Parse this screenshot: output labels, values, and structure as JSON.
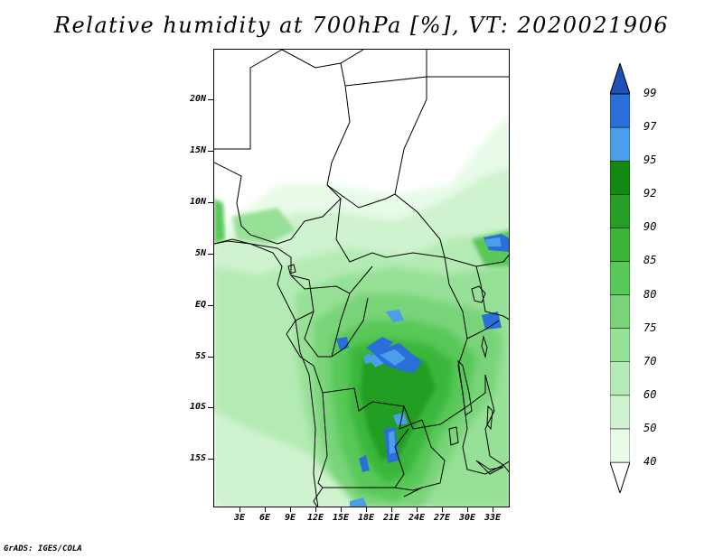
{
  "title": "Relative humidity at 700hPa [%], VT: 2020021906",
  "footer": "GrADS: IGES/COLA",
  "lat_labels": [
    "20N",
    "15N",
    "10N",
    "5N",
    "EQ",
    "5S",
    "10S",
    "15S"
  ],
  "lon_labels": [
    "3E",
    "6E",
    "9E",
    "12E",
    "15E",
    "18E",
    "21E",
    "24E",
    "27E",
    "30E",
    "33E"
  ],
  "colorbar": {
    "labels": [
      "40",
      "50",
      "60",
      "70",
      "75",
      "80",
      "85",
      "90",
      "92",
      "95",
      "97",
      "99"
    ],
    "colors": [
      "#ffffff",
      "#e8fae8",
      "#cff2cf",
      "#b4ebb4",
      "#97e097",
      "#79d479",
      "#58c858",
      "#3bb63b",
      "#249e24",
      "#128a12",
      "#4a9eea",
      "#2a6fd8",
      "#1f4fb8"
    ]
  },
  "map": {
    "domain": "Central Africa",
    "field": "Relative humidity",
    "units": "%",
    "level": "700hPa",
    "valid_time": "2020021906"
  }
}
